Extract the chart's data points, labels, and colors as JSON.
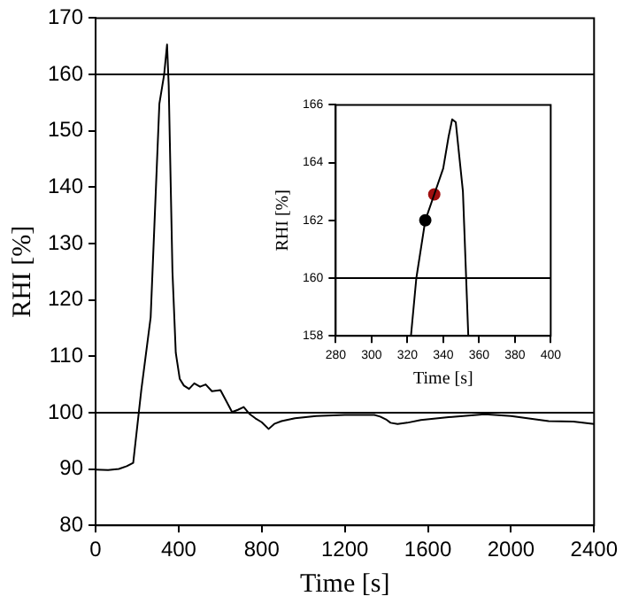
{
  "chart_data": [
    {
      "type": "line",
      "xlabel": "Time [s]",
      "ylabel": "RHI [%]",
      "xlim": [
        0,
        2400
      ],
      "xticks": [
        0,
        400,
        800,
        1200,
        1600,
        2000,
        2400
      ],
      "ylim": [
        80,
        170
      ],
      "yticks": [
        80,
        90,
        100,
        110,
        120,
        130,
        140,
        150,
        160,
        170
      ],
      "series": [
        {
          "color": "#000000",
          "x": [
            0,
            60,
            112,
            150,
            181,
            220,
            265,
            307,
            330,
            344,
            352,
            370,
            386,
            405,
            425,
            450,
            475,
            503,
            530,
            560,
            601,
            630,
            657,
            685,
            713,
            740,
            769,
            800,
            833,
            860,
            895,
            960,
            1062,
            1200,
            1342,
            1370,
            1398,
            1420,
            1454,
            1500,
            1566,
            1700,
            1874,
            2000,
            2181,
            2300,
            2400
          ],
          "values": [
            89.9,
            89.8,
            90,
            90.5,
            91.1,
            104,
            116.9,
            154.8,
            160,
            165.3,
            158,
            125,
            110.6,
            106,
            104.8,
            104.2,
            105.2,
            104.6,
            105,
            103.8,
            104,
            102,
            100.1,
            100.5,
            101,
            99.8,
            99,
            98.3,
            97.1,
            98,
            98.5,
            99,
            99.4,
            99.6,
            99.6,
            99.3,
            98.8,
            98.2,
            98,
            98.2,
            98.7,
            99.2,
            99.7,
            99.4,
            98.5,
            98.4,
            98
          ]
        }
      ],
      "ref_lines": [
        {
          "axis": "y",
          "value": 160
        },
        {
          "axis": "y",
          "value": 100
        }
      ]
    },
    {
      "type": "line",
      "xlabel": "Time [s]",
      "ylabel": "RHI [%]",
      "xlim": [
        280,
        400
      ],
      "xticks": [
        280,
        300,
        320,
        340,
        360,
        380,
        400
      ],
      "ylim": [
        158,
        166
      ],
      "yticks": [
        158,
        160,
        162,
        164,
        166
      ],
      "series": [
        {
          "color": "#000000",
          "x": [
            322,
            325,
            330,
            335,
            340,
            343,
            345,
            347,
            351,
            354
          ],
          "values": [
            158,
            160,
            162,
            162.9,
            163.8,
            164.9,
            165.5,
            165.4,
            163,
            158
          ]
        },
        {
          "type": "scatter",
          "marker": "circle",
          "colors": [
            "#000000",
            "#a01010"
          ],
          "x": [
            330,
            335
          ],
          "values": [
            162,
            162.9
          ]
        }
      ],
      "ref_lines": [
        {
          "axis": "y",
          "value": 160
        }
      ]
    }
  ]
}
